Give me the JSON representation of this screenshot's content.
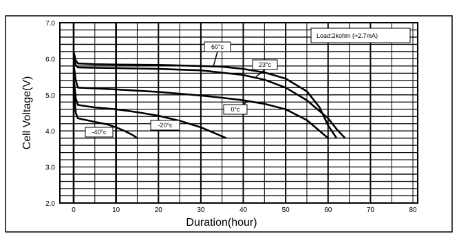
{
  "chart_data": {
    "type": "line",
    "title": "",
    "xlabel": "Duration(hour)",
    "ylabel": "Cell Voltage(V)",
    "xlim": [
      0,
      80
    ],
    "ylim": [
      2.0,
      7.0
    ],
    "x_ticks": [
      "0",
      "10",
      "20",
      "30",
      "40",
      "50",
      "60",
      "70",
      "80"
    ],
    "y_ticks": [
      "2.0",
      "3.0",
      "4.0",
      "5.0",
      "6.0",
      "7.0"
    ],
    "grid": true,
    "legend": "Load:2kohm (≈2.7mA)",
    "legend_position": "top-right",
    "series": [
      {
        "name": "60°c",
        "x": [
          0,
          0.5,
          1,
          5,
          10,
          20,
          30,
          35,
          40,
          45,
          50,
          55,
          58,
          60,
          62
        ],
        "y": [
          6.2,
          5.95,
          5.87,
          5.85,
          5.84,
          5.83,
          5.8,
          5.78,
          5.72,
          5.62,
          5.45,
          5.1,
          4.65,
          4.15,
          3.8
        ]
      },
      {
        "name": "23°c",
        "x": [
          0,
          0.5,
          1,
          5,
          10,
          20,
          30,
          40,
          45,
          50,
          55,
          60,
          62,
          64
        ],
        "y": [
          6.0,
          5.82,
          5.76,
          5.75,
          5.74,
          5.72,
          5.68,
          5.55,
          5.42,
          5.2,
          4.85,
          4.35,
          4.05,
          3.8
        ]
      },
      {
        "name": "0°c",
        "x": [
          0,
          0.5,
          1,
          5,
          10,
          20,
          30,
          35,
          40,
          45,
          50,
          55,
          58,
          60
        ],
        "y": [
          5.85,
          5.4,
          5.2,
          5.18,
          5.15,
          5.08,
          4.98,
          4.92,
          4.85,
          4.75,
          4.6,
          4.3,
          4.0,
          3.8
        ]
      },
      {
        "name": "-20°c",
        "x": [
          0,
          0.5,
          1,
          5,
          10,
          15,
          20,
          25,
          30,
          34,
          36
        ],
        "y": [
          5.5,
          4.9,
          4.72,
          4.65,
          4.6,
          4.52,
          4.42,
          4.28,
          4.1,
          3.9,
          3.8
        ]
      },
      {
        "name": "-40°c",
        "x": [
          0,
          0.5,
          1,
          3,
          5,
          8,
          10,
          12,
          14,
          15
        ],
        "y": [
          5.2,
          4.5,
          4.35,
          4.3,
          4.25,
          4.18,
          4.1,
          4.0,
          3.88,
          3.8
        ]
      }
    ]
  }
}
